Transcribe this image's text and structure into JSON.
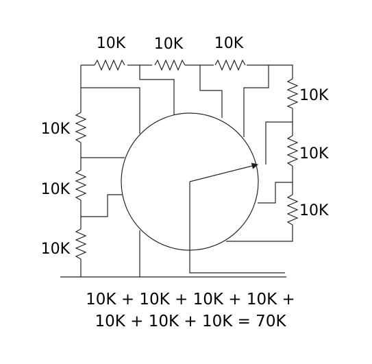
{
  "resistors": {
    "top_left": {
      "label": "10K"
    },
    "top_middle": {
      "label": "10K"
    },
    "top_right": {
      "label": "10K"
    },
    "right_top": {
      "label": "10K"
    },
    "right_middle": {
      "label": "10K"
    },
    "right_bottom": {
      "label": "10K"
    },
    "left_top": {
      "label": "10K"
    },
    "left_middle": {
      "label": "10K"
    },
    "left_bottom": {
      "label": "10K"
    }
  },
  "equation": {
    "line1": "10K + 10K + 10K + 10K +",
    "line2": "10K + 10K + 10K = 70K"
  }
}
